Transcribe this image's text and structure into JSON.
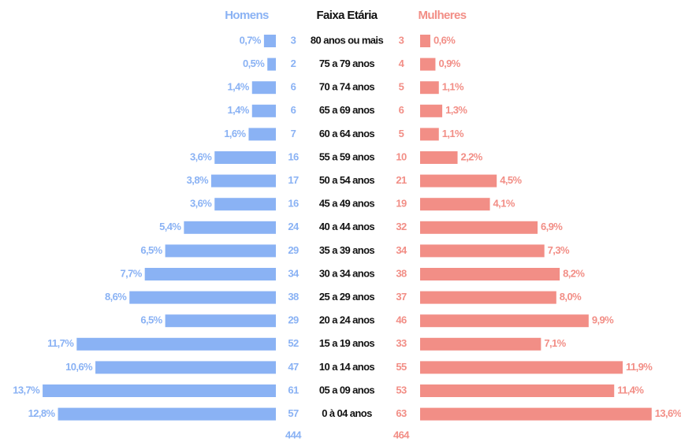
{
  "chart_data": {
    "type": "pyramid",
    "category_label": "Faixa Etária",
    "categories": [
      "80 anos ou mais",
      "75 a 79 anos",
      "70 a 74 anos",
      "65 a 69 anos",
      "60 a 64 anos",
      "55 a 59 anos",
      "50 a 54 anos",
      "45 a 49 anos",
      "40 a 44 anos",
      "35 a 39 anos",
      "30 a 34 anos",
      "25 a 29 anos",
      "20 a 24 anos",
      "15 a 19 anos",
      "10 a 14 anos",
      "05 a 09 anos",
      "0 à  04 anos"
    ],
    "series": [
      {
        "name": "Homens",
        "color": "#8ab2f4",
        "values": [
          0.7,
          0.5,
          1.4,
          1.4,
          1.6,
          3.6,
          3.8,
          3.6,
          5.4,
          6.5,
          7.7,
          8.6,
          6.5,
          11.7,
          10.6,
          13.7,
          12.8
        ],
        "value_labels": [
          "0,7%",
          "0,5%",
          "1,4%",
          "1,4%",
          "1,6%",
          "3,6%",
          "3,8%",
          "3,6%",
          "5,4%",
          "6,5%",
          "7,7%",
          "8,6%",
          "6,5%",
          "11,7%",
          "10,6%",
          "13,7%",
          "12,8%"
        ],
        "counts": [
          3,
          2,
          6,
          6,
          7,
          16,
          17,
          16,
          24,
          29,
          34,
          38,
          29,
          52,
          47,
          61,
          57
        ],
        "total": 444
      },
      {
        "name": "Mulheres",
        "color": "#f28e86",
        "values": [
          0.6,
          0.9,
          1.1,
          1.3,
          1.1,
          2.2,
          4.5,
          4.1,
          6.9,
          7.3,
          8.2,
          8.0,
          9.9,
          7.1,
          11.9,
          11.4,
          13.6
        ],
        "value_labels": [
          "0,6%",
          "0,9%",
          "1,1%",
          "1,3%",
          "1,1%",
          "2,2%",
          "4,5%",
          "4,1%",
          "6,9%",
          "7,3%",
          "8,2%",
          "8,0%",
          "9,9%",
          "7,1%",
          "11,9%",
          "11,4%",
          "13,6%"
        ],
        "counts": [
          3,
          4,
          5,
          6,
          5,
          10,
          21,
          19,
          32,
          34,
          38,
          37,
          46,
          33,
          55,
          53,
          63
        ],
        "total": 464
      }
    ]
  }
}
